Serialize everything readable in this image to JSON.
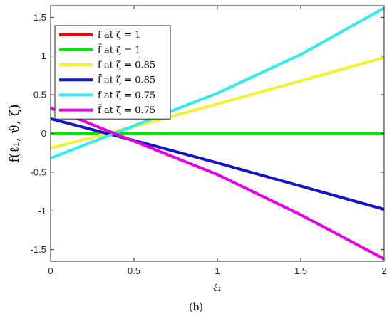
{
  "caption": "(b)",
  "chart_data": {
    "type": "line",
    "xlabel": "ℓ₁",
    "ylabel": "f(ℓ₁, ϑ, ζ)",
    "xlim": [
      0,
      2
    ],
    "ylim": [
      -1.65,
      1.65
    ],
    "xticks": [
      0,
      0.5,
      1,
      1.5,
      2
    ],
    "xtick_labels": [
      "0",
      "0.5",
      "1",
      "1.5",
      "2"
    ],
    "yticks": [
      -1.5,
      -1,
      -0.5,
      0,
      0.5,
      1,
      1.5
    ],
    "ytick_labels": [
      "-1.5",
      "-1",
      "-0.5",
      "0",
      "0.5",
      "1",
      "1.5"
    ],
    "grid": false,
    "legend_position": "top-left",
    "series": [
      {
        "name": "f at ζ = 1",
        "color": "#ff0000",
        "x": [
          0,
          2
        ],
        "y": [
          0,
          0
        ]
      },
      {
        "name": "f̄ at ζ = 1",
        "color": "#00e600",
        "x": [
          0,
          2
        ],
        "y": [
          0,
          0
        ]
      },
      {
        "name": "f at ζ = 0.85",
        "color": "#f5f032",
        "x": [
          0,
          0.5,
          1,
          1.5,
          2
        ],
        "y": [
          -0.19,
          0.09,
          0.38,
          0.68,
          0.98
        ]
      },
      {
        "name": "f̄ at ζ = 0.85",
        "color": "#1414c8",
        "x": [
          0,
          0.5,
          1,
          1.5,
          2
        ],
        "y": [
          0.19,
          -0.09,
          -0.38,
          -0.68,
          -0.98
        ]
      },
      {
        "name": "f at ζ = 0.75",
        "color": "#33ebeb",
        "x": [
          0,
          0.5,
          1,
          1.5,
          2
        ],
        "y": [
          -0.32,
          0.1,
          0.52,
          1.02,
          1.62
        ]
      },
      {
        "name": "f̄ at ζ = 0.75",
        "color": "#e600e6",
        "x": [
          0,
          0.5,
          1,
          1.5,
          2
        ],
        "y": [
          0.33,
          -0.1,
          -0.53,
          -1.05,
          -1.62
        ]
      }
    ]
  }
}
